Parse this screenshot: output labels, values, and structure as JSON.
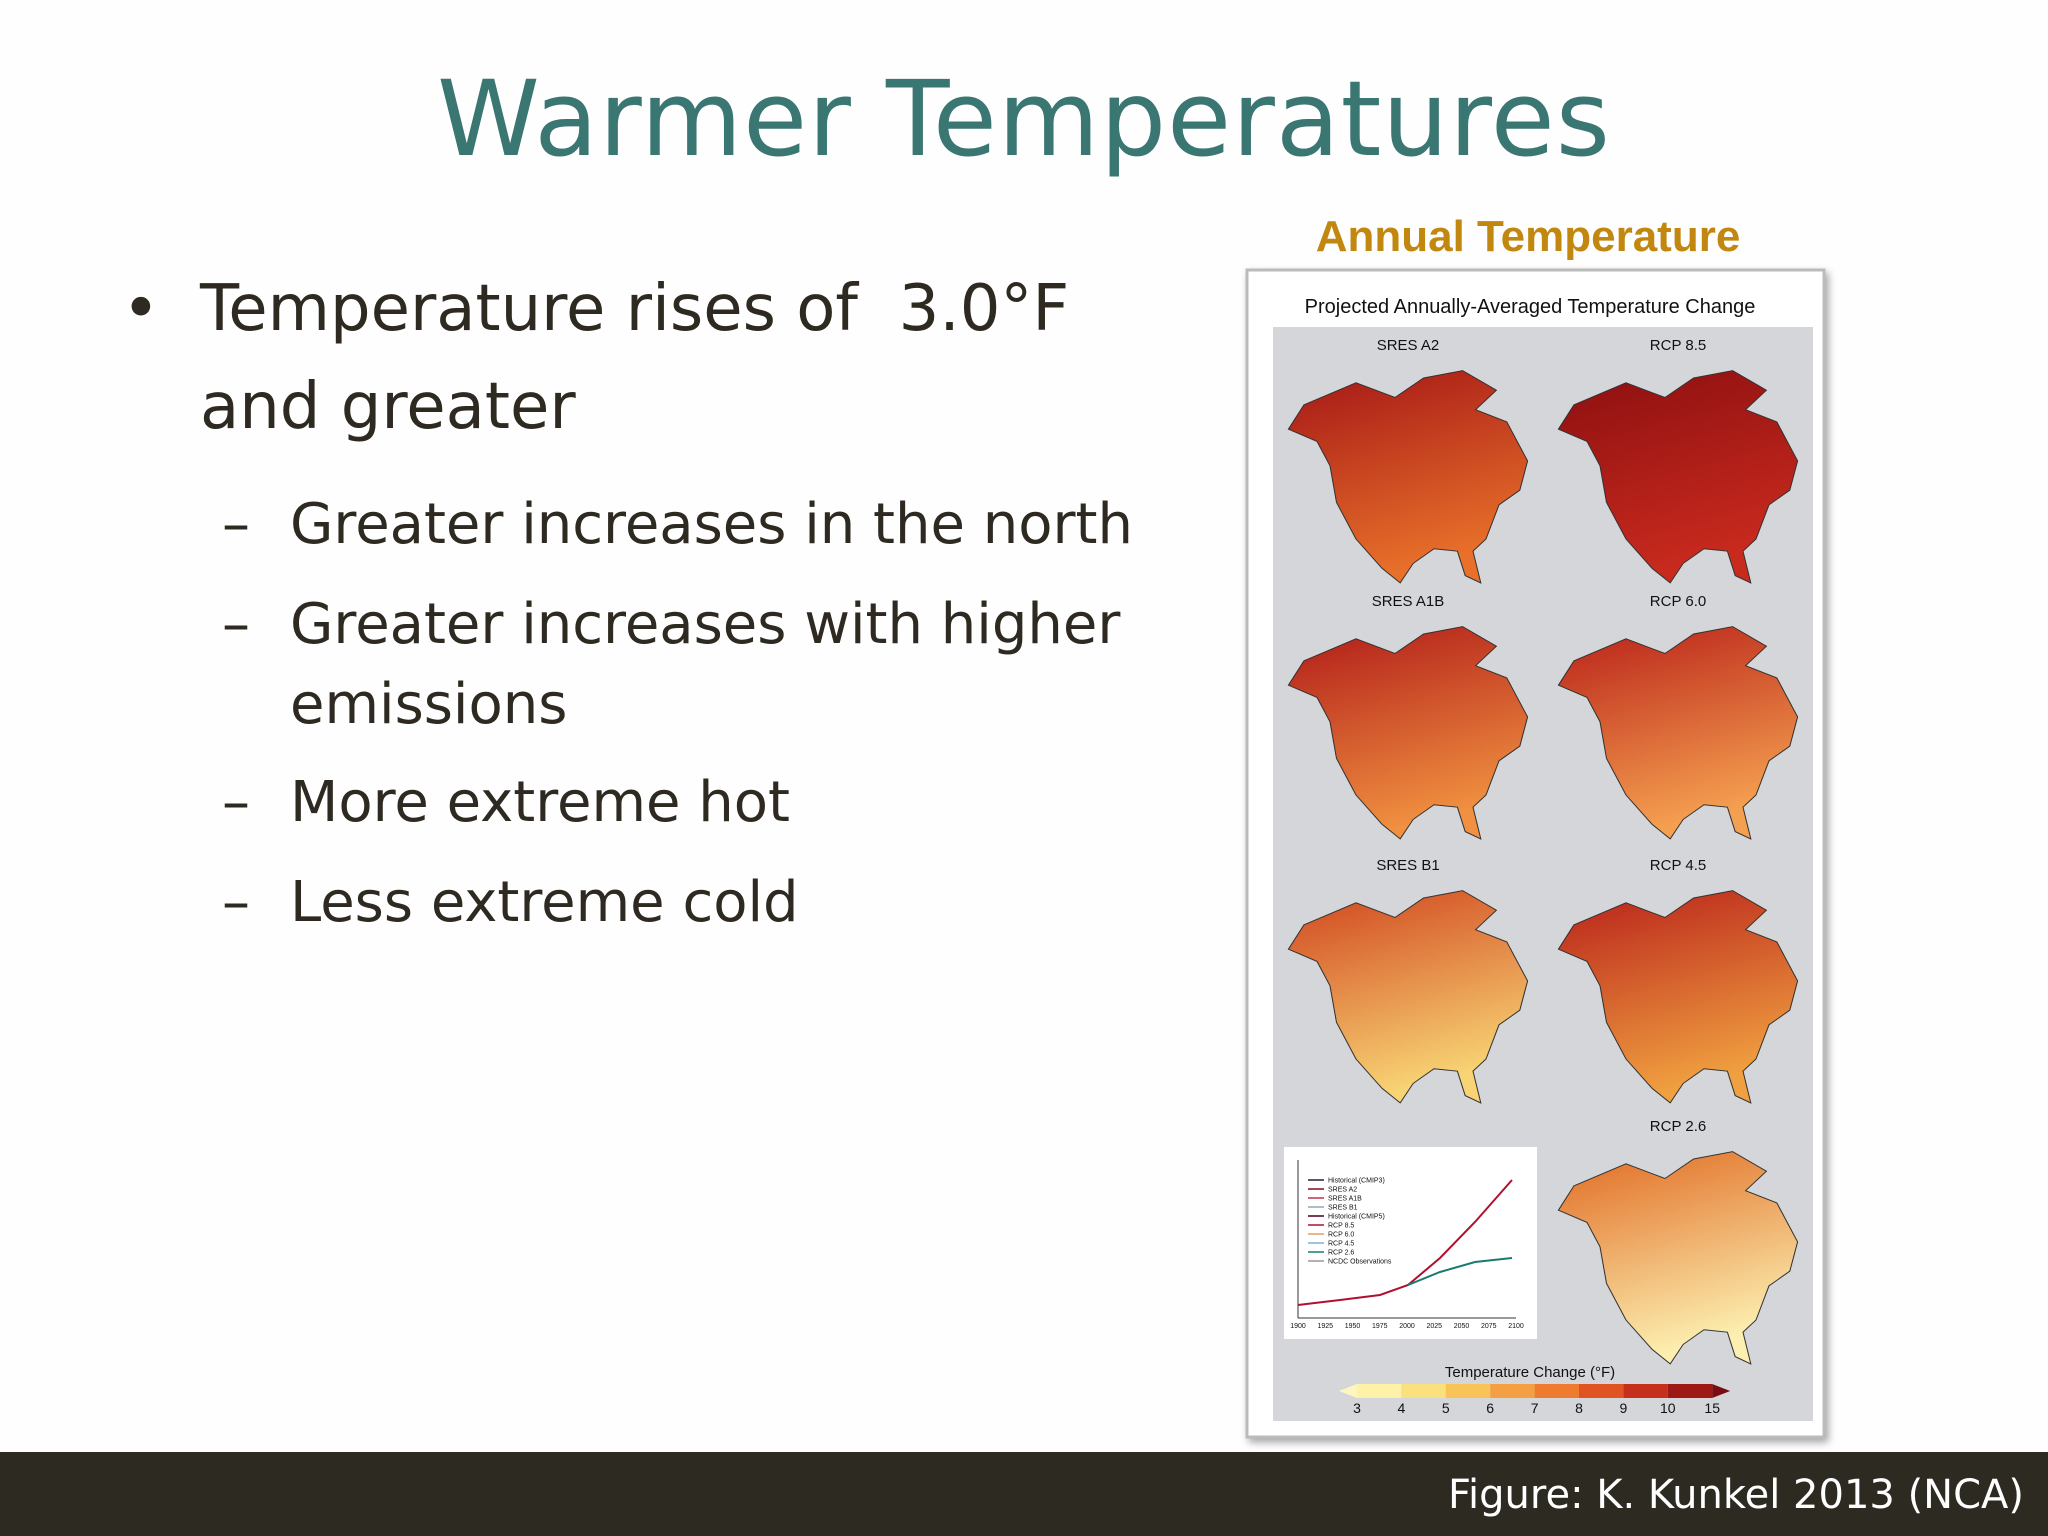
{
  "slide": {
    "title": "Warmer Temperatures",
    "bullet": {
      "lines": [
        "Temperature rises of  3.0°F",
        "and greater"
      ]
    },
    "subbullets": [
      {
        "lines": [
          "Greater increases in the north"
        ]
      },
      {
        "lines": [
          "Greater increases with higher",
          "emissions"
        ]
      },
      {
        "lines": [
          "More extreme hot"
        ]
      },
      {
        "lines": [
          "Less extreme cold"
        ]
      }
    ],
    "figure": {
      "heading": "Annual Temperature",
      "title": "Projected Annually-Averaged Temperature Change",
      "panels": [
        "SRES A2",
        "RCP 8.5",
        "SRES A1B",
        "RCP 6.0",
        "SRES B1",
        "RCP 4.5",
        "RCP 2.6"
      ],
      "inset_legend": [
        "Historical (CMIP3)",
        "SRES A2",
        "SRES A1B",
        "SRES B1",
        "Historical (CMIP5)",
        "RCP 8.5",
        "RCP 6.0",
        "RCP 4.5",
        "RCP 2.6",
        "NCDC Observations"
      ],
      "inset_xticks": [
        "1900",
        "1925",
        "1950",
        "1975",
        "2000",
        "2025",
        "2050",
        "2075",
        "2100"
      ],
      "colorbar_title": "Temperature Change (°F)",
      "colorbar_ticks": [
        3,
        4,
        5,
        6,
        7,
        8,
        9,
        10,
        15
      ]
    },
    "footer": "Figure: K. Kunkel 2013 (NCA)"
  }
}
